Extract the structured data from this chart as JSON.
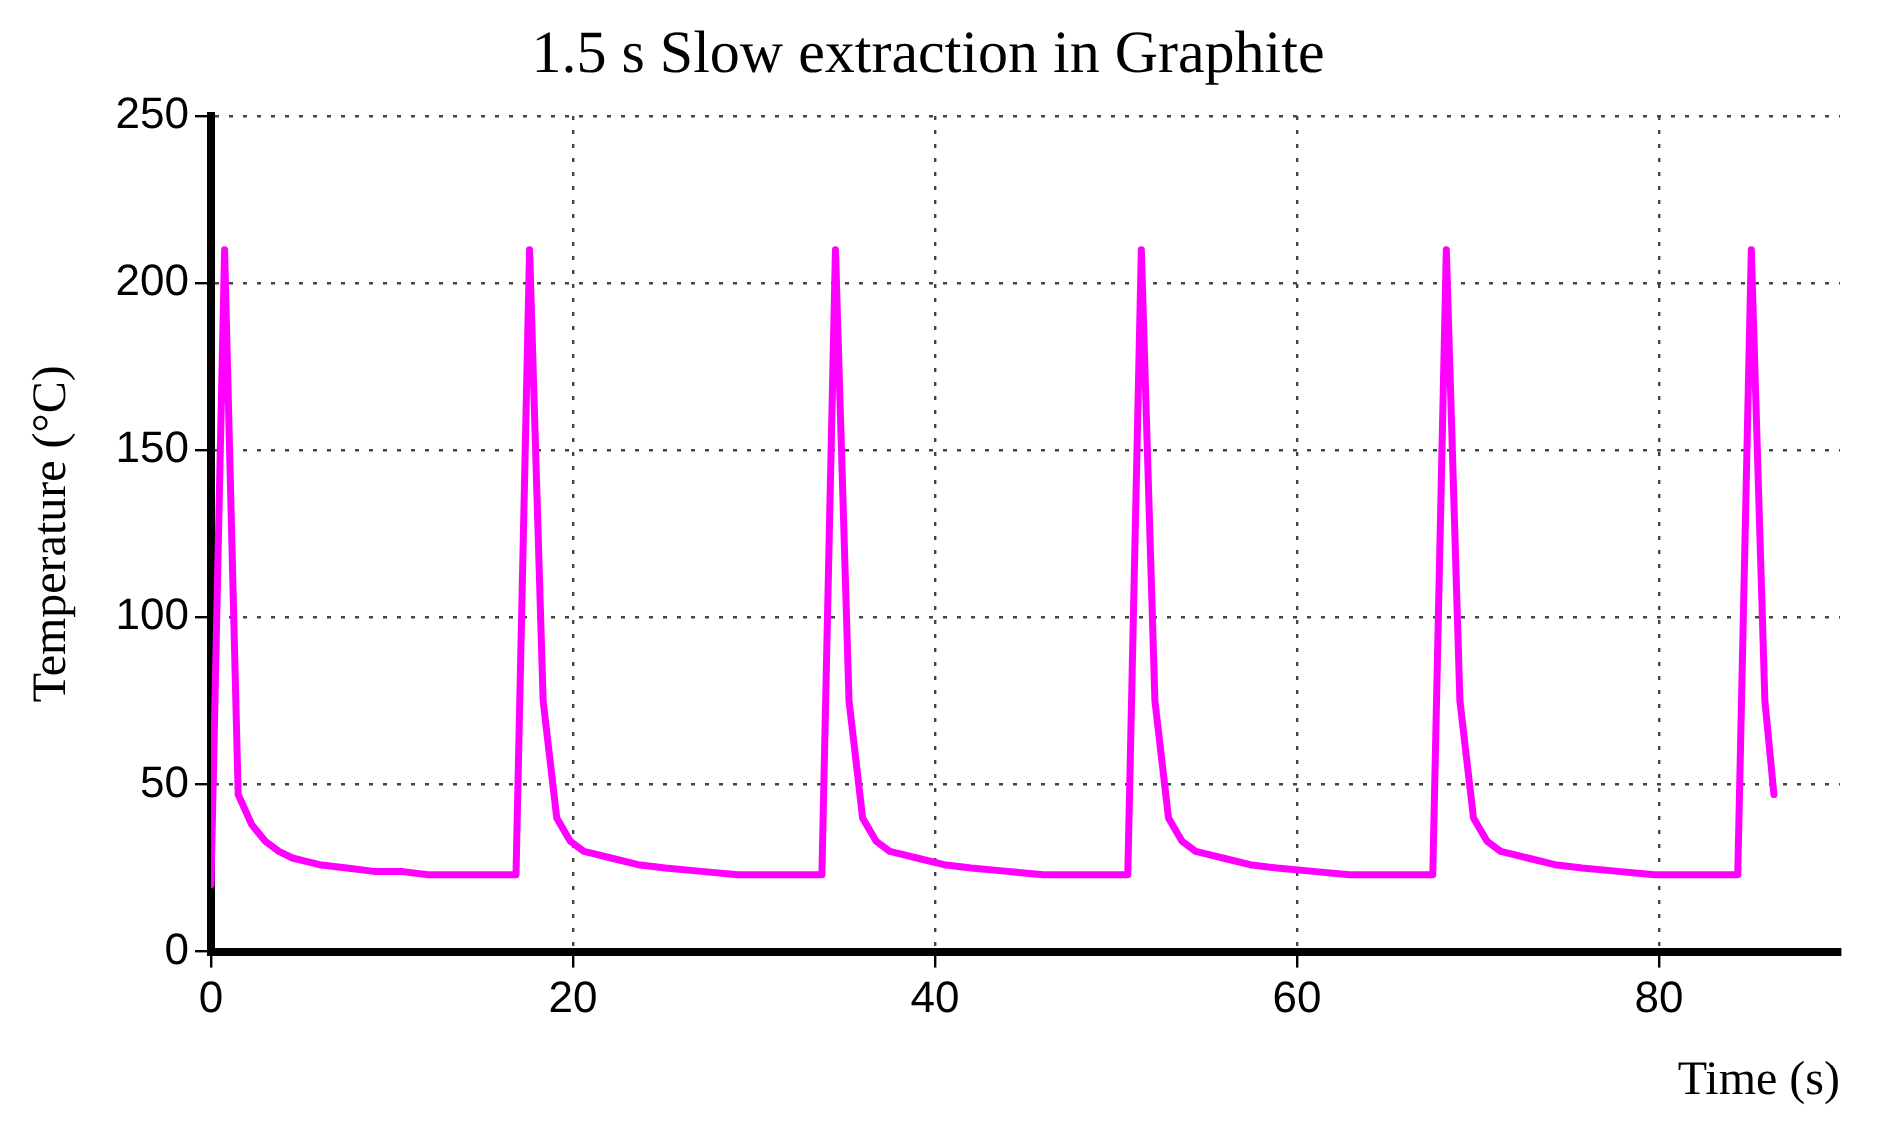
{
  "chart_data": {
    "type": "line",
    "title": "1.5 s Slow extraction in Graphite",
    "xlabel": "Time (s)",
    "ylabel": "Temperature (°C)",
    "xlim": [
      0,
      90
    ],
    "xticks": [
      0,
      20,
      40,
      60,
      80
    ],
    "ylim": [
      0,
      250
    ],
    "yticks": [
      0,
      50,
      100,
      150,
      200,
      250
    ],
    "grid": true,
    "legend": false,
    "marker": "none",
    "line_style": "solid",
    "series": [
      {
        "color": "#ff00ff",
        "x": [
          0,
          0.75,
          1.5,
          2.25,
          3,
          3.75,
          4.5,
          5.25,
          6,
          7.5,
          9,
          10.5,
          12,
          16.85,
          17.6,
          18.35,
          19.1,
          19.85,
          20.6,
          21.35,
          22.1,
          23.6,
          25.1,
          27.1,
          29.1,
          33.75,
          34.5,
          35.25,
          36,
          36.75,
          37.5,
          38.25,
          39,
          40.5,
          42,
          44,
          46,
          50.65,
          51.4,
          52.15,
          52.9,
          53.65,
          54.4,
          55.15,
          55.9,
          57.4,
          58.9,
          60.9,
          62.9,
          67.5,
          68.25,
          69,
          69.75,
          70.5,
          71.25,
          72,
          72.75,
          74.25,
          75.75,
          77.75,
          79.75,
          84.35,
          85.1,
          85.85,
          86.35
        ],
        "values": [
          20,
          210,
          47,
          38,
          33,
          30,
          28,
          27,
          26,
          25,
          24,
          24,
          23,
          23,
          210,
          75,
          40,
          33,
          30,
          29,
          28,
          26,
          25,
          24,
          23,
          23,
          210,
          75,
          40,
          33,
          30,
          29,
          28,
          26,
          25,
          24,
          23,
          23,
          210,
          75,
          40,
          33,
          30,
          29,
          28,
          26,
          25,
          24,
          23,
          23,
          210,
          75,
          40,
          33,
          30,
          29,
          28,
          26,
          25,
          24,
          23,
          23,
          210,
          75,
          47
        ]
      }
    ]
  }
}
